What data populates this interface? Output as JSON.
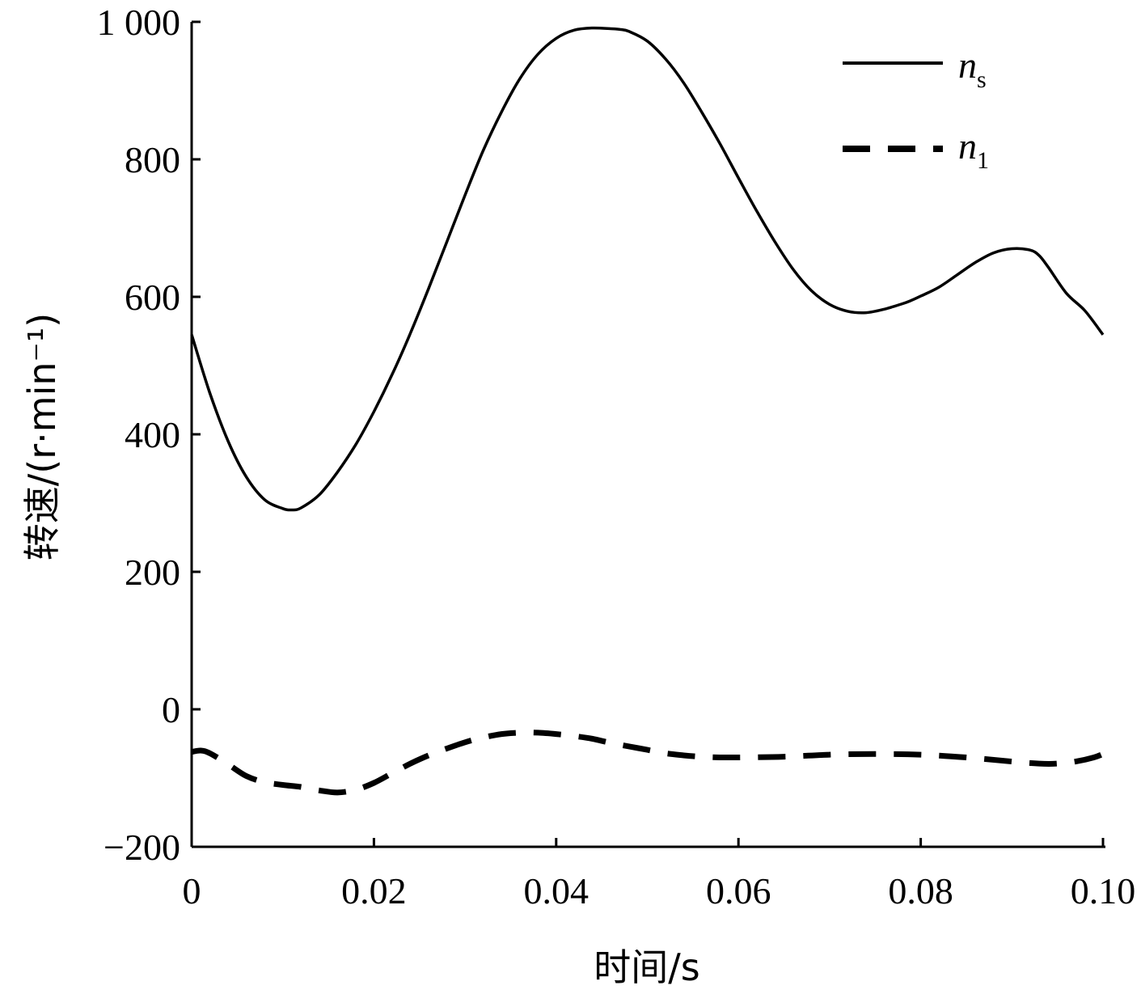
{
  "chart_data": {
    "type": "line",
    "xlabel": "时间/s",
    "ylabel": "转速/(r·min⁻¹)",
    "xlim": [
      0,
      0.1
    ],
    "ylim": [
      -200,
      1000
    ],
    "xticks": [
      0,
      0.02,
      0.04,
      0.06,
      0.08,
      0.1
    ],
    "xtick_labels": [
      "0",
      "0.02",
      "0.04",
      "0.06",
      "0.08",
      "0.10"
    ],
    "yticks": [
      -200,
      0,
      200,
      400,
      600,
      800,
      1000
    ],
    "ytick_labels": [
      "−200",
      "0",
      "200",
      "400",
      "600",
      "800",
      "1 000"
    ],
    "grid": false,
    "legend_position": "top-right",
    "series": [
      {
        "name": "n_s",
        "name_base": "n",
        "name_sub": "s",
        "style": "solid",
        "x": [
          0,
          0.002,
          0.004,
          0.006,
          0.008,
          0.01,
          0.011,
          0.012,
          0.014,
          0.016,
          0.018,
          0.02,
          0.022,
          0.024,
          0.026,
          0.028,
          0.03,
          0.032,
          0.034,
          0.036,
          0.038,
          0.04,
          0.042,
          0.044,
          0.046,
          0.047,
          0.048,
          0.05,
          0.052,
          0.054,
          0.056,
          0.058,
          0.06,
          0.062,
          0.064,
          0.066,
          0.068,
          0.07,
          0.072,
          0.074,
          0.076,
          0.078,
          0.079,
          0.08,
          0.082,
          0.084,
          0.086,
          0.088,
          0.09,
          0.092,
          0.093,
          0.094,
          0.096,
          0.098,
          0.1
        ],
        "y": [
          545,
          460,
          390,
          338,
          305,
          292,
          290,
          293,
          312,
          345,
          385,
          433,
          487,
          547,
          612,
          680,
          748,
          813,
          869,
          917,
          953,
          976,
          988,
          991,
          990,
          989,
          986,
          972,
          946,
          911,
          868,
          822,
          773,
          725,
          680,
          640,
          609,
          589,
          579,
          577,
          582,
          590,
          595,
          601,
          614,
          632,
          650,
          664,
          670,
          668,
          660,
          643,
          605,
          580,
          545
        ]
      },
      {
        "name": "n_1",
        "name_base": "n",
        "name_sub": "1",
        "style": "dashed",
        "x": [
          0,
          0.001,
          0.002,
          0.004,
          0.006,
          0.008,
          0.01,
          0.012,
          0.014,
          0.016,
          0.018,
          0.02,
          0.022,
          0.024,
          0.026,
          0.028,
          0.03,
          0.032,
          0.034,
          0.036,
          0.038,
          0.04,
          0.042,
          0.044,
          0.046,
          0.048,
          0.05,
          0.052,
          0.054,
          0.056,
          0.058,
          0.06,
          0.065,
          0.07,
          0.075,
          0.08,
          0.085,
          0.09,
          0.093,
          0.095,
          0.097,
          0.099,
          0.1
        ],
        "y": [
          -62,
          -60,
          -64,
          -80,
          -97,
          -106,
          -110,
          -113,
          -118,
          -121,
          -117,
          -107,
          -93,
          -79,
          -67,
          -57,
          -48,
          -41,
          -36,
          -34,
          -34,
          -36,
          -39,
          -43,
          -49,
          -54,
          -59,
          -64,
          -67,
          -69,
          -70,
          -70,
          -69,
          -66,
          -65,
          -66,
          -70,
          -76,
          -79,
          -79,
          -76,
          -70,
          -65
        ]
      }
    ]
  }
}
